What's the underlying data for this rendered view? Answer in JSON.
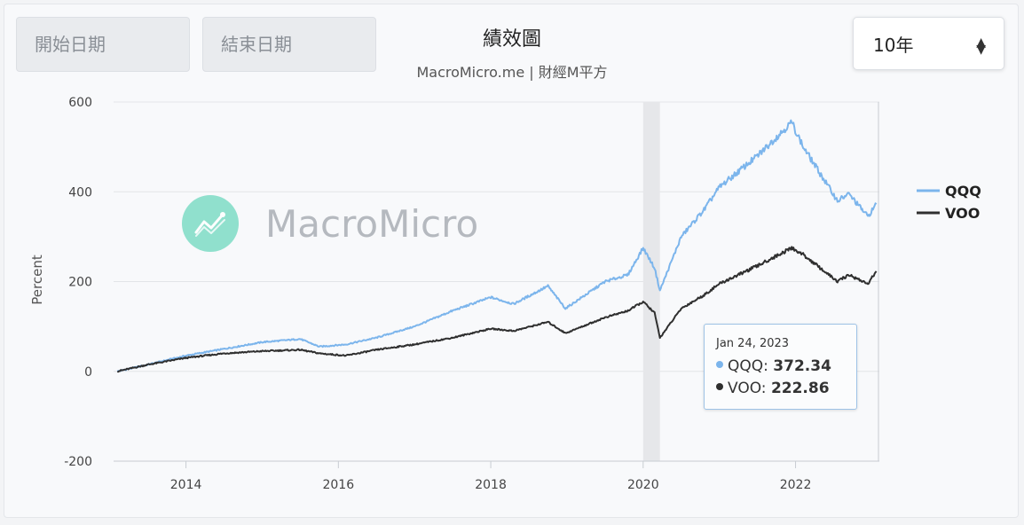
{
  "controls": {
    "start_placeholder": "開始日期",
    "end_placeholder": "結束日期",
    "range_value": "10年"
  },
  "watermark": {
    "text": "MacroMicro",
    "icon": "line-chart-icon"
  },
  "tooltip": {
    "date": "Jan 24, 2023",
    "rows": [
      {
        "name": "QQQ",
        "value": "372.34"
      },
      {
        "name": "VOO",
        "value": "222.86"
      }
    ]
  },
  "chart_data": {
    "type": "line",
    "title": "績效圖",
    "subtitle": "MacroMicro.me | 財經M平方",
    "xlabel": "",
    "ylabel": "Percent",
    "xlim": [
      2013.05,
      2023.1
    ],
    "ylim": [
      -200,
      600
    ],
    "y_ticks": [
      -200,
      0,
      200,
      400,
      600
    ],
    "x_ticks": [
      2014,
      2016,
      2018,
      2020,
      2022
    ],
    "x_tick_labels": [
      "2014",
      "2016",
      "2018",
      "2020",
      "2022"
    ],
    "grid": true,
    "legend_position": "right",
    "highlight_band": [
      2020.0,
      2020.22
    ],
    "colors": {
      "QQQ": "#7cb5ec",
      "VOO": "#2f2f2f"
    },
    "series": [
      {
        "name": "QQQ",
        "x": [
          2013.1,
          2013.5,
          2014.0,
          2014.5,
          2015.0,
          2015.5,
          2015.75,
          2016.1,
          2016.5,
          2017.0,
          2017.5,
          2018.0,
          2018.3,
          2018.75,
          2018.98,
          2019.5,
          2019.8,
          2020.0,
          2020.15,
          2020.22,
          2020.5,
          2020.8,
          2021.0,
          2021.5,
          2021.95,
          2022.1,
          2022.4,
          2022.55,
          2022.7,
          2022.95,
          2023.06
        ],
        "y": [
          0,
          15,
          35,
          50,
          65,
          72,
          55,
          60,
          75,
          100,
          135,
          165,
          150,
          190,
          140,
          200,
          215,
          275,
          230,
          180,
          300,
          360,
          410,
          480,
          555,
          500,
          420,
          380,
          395,
          345,
          372.34
        ]
      },
      {
        "name": "VOO",
        "x": [
          2013.1,
          2013.5,
          2014.0,
          2014.5,
          2015.0,
          2015.5,
          2015.75,
          2016.1,
          2016.5,
          2017.0,
          2017.5,
          2018.0,
          2018.3,
          2018.75,
          2018.98,
          2019.5,
          2019.8,
          2020.0,
          2020.15,
          2020.22,
          2020.5,
          2020.8,
          2021.0,
          2021.5,
          2021.95,
          2022.1,
          2022.4,
          2022.55,
          2022.7,
          2022.95,
          2023.06
        ],
        "y": [
          0,
          15,
          30,
          40,
          45,
          48,
          40,
          35,
          48,
          60,
          75,
          95,
          90,
          110,
          85,
          120,
          135,
          155,
          130,
          75,
          140,
          170,
          195,
          235,
          275,
          260,
          220,
          200,
          215,
          195,
          222.86
        ]
      }
    ]
  }
}
